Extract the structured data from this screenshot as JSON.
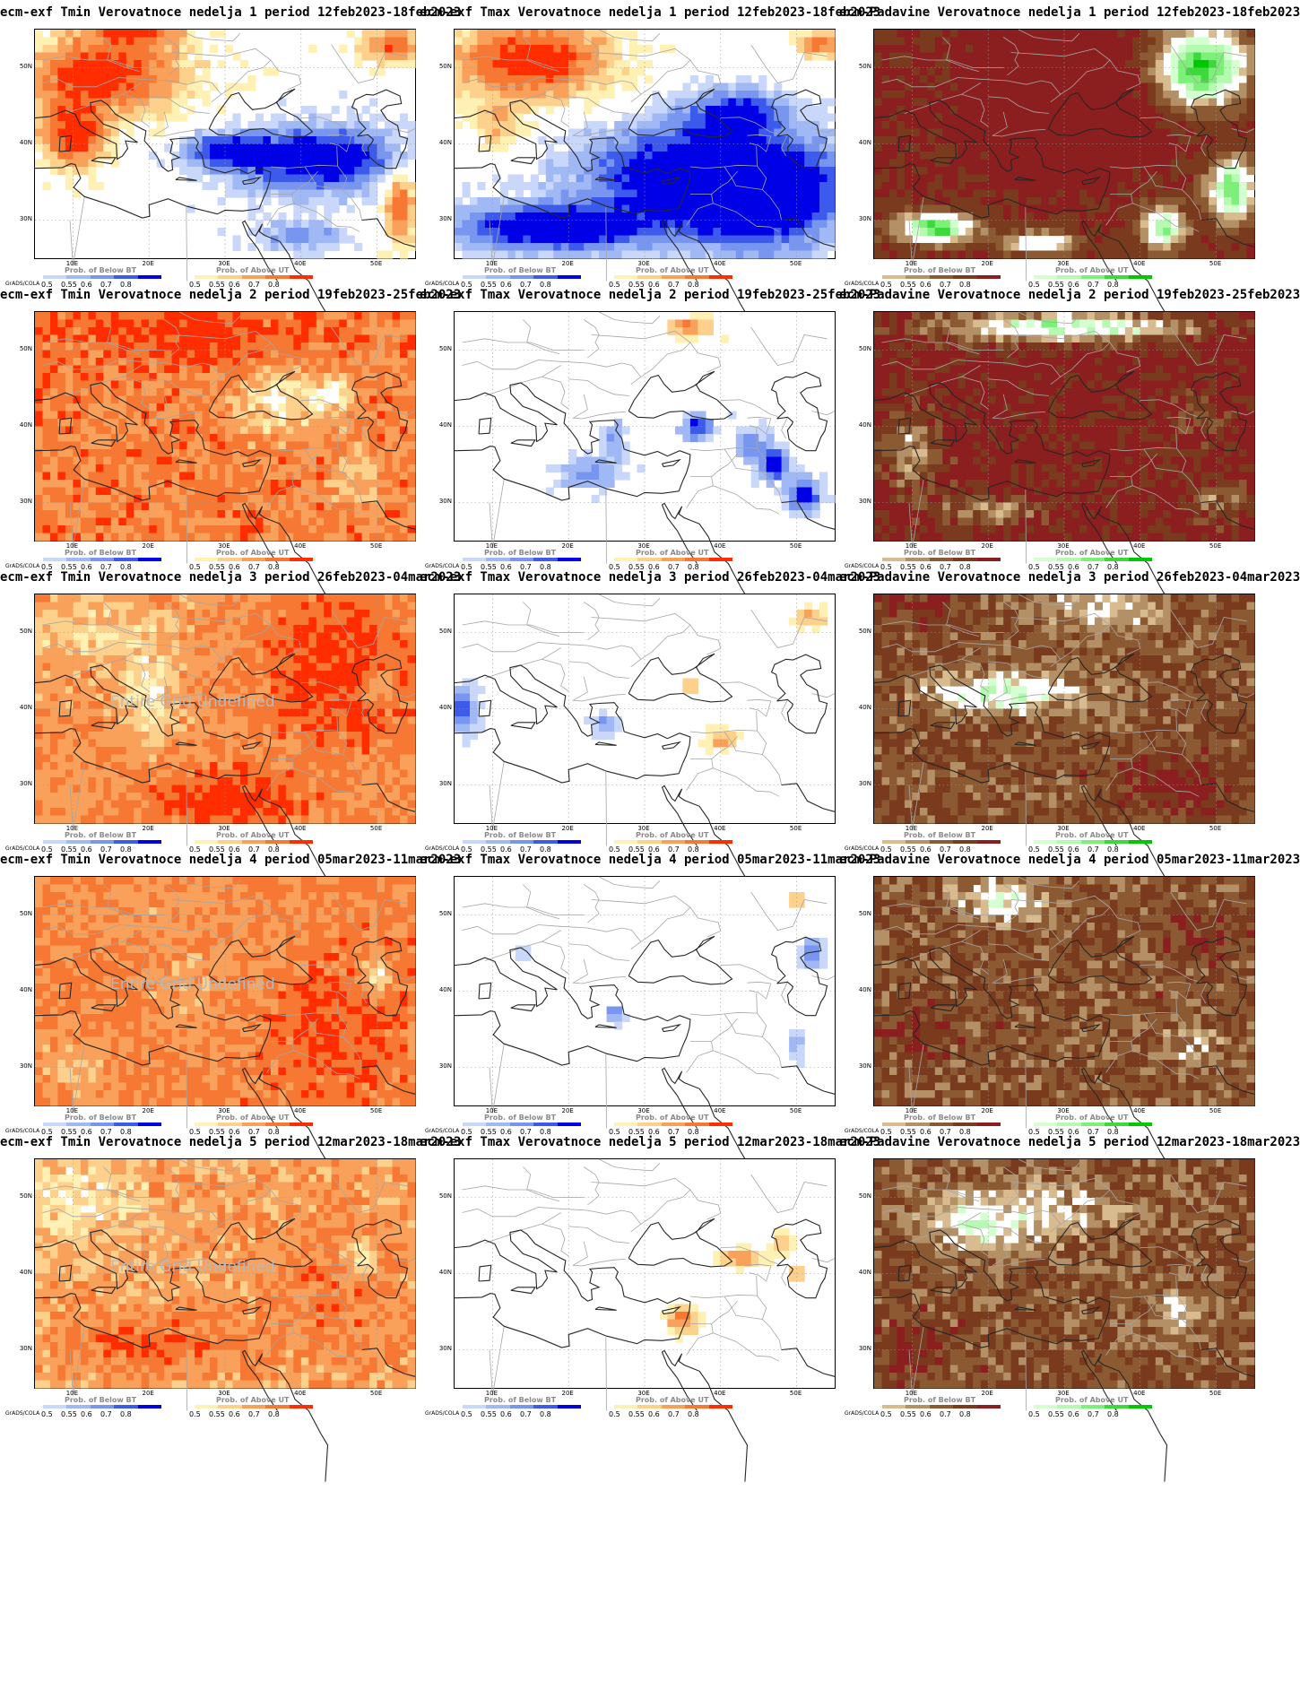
{
  "panels": [
    {
      "title": "ecm-exf Tmin Verovatnoce nedelja 1 period 12feb2023-18feb2023",
      "var": "tmin",
      "week": 1
    },
    {
      "title": "ecm-exf Tmax Verovatnoce nedelja 1 period 12feb2023-18feb2023",
      "var": "tmax",
      "week": 1
    },
    {
      "title": "ecm-Padavine Verovatnoce nedelja 1 period 12feb2023-18feb2023",
      "var": "prec",
      "week": 1
    },
    {
      "title": "ecm-exf Tmin Verovatnoce nedelja 2 period 19feb2023-25feb2023",
      "var": "tmin",
      "week": 2
    },
    {
      "title": "ecm-exf Tmax Verovatnoce nedelja 2 period 19feb2023-25feb2023",
      "var": "tmax",
      "week": 2
    },
    {
      "title": "ecm-Padavine Verovatnoce nedelja 2 period 19feb2023-25feb2023",
      "var": "prec",
      "week": 2
    },
    {
      "title": "ecm-exf Tmin Verovatnoce nedelja 3 period 26feb2023-04mar2023",
      "var": "tmin",
      "week": 3,
      "undefined_text": "Entire Grid Undefined"
    },
    {
      "title": "ecm-exf Tmax Verovatnoce nedelja 3 period 26feb2023-04mar2023",
      "var": "tmax",
      "week": 3
    },
    {
      "title": "ecm-Padavine Verovatnoce nedelja 3 period 26feb2023-04mar2023",
      "var": "prec",
      "week": 3
    },
    {
      "title": "ecm-exf Tmin Verovatnoce nedelja 4 period 05mar2023-11mar2023",
      "var": "tmin",
      "week": 4,
      "undefined_text": "Entire Grid Undefined"
    },
    {
      "title": "ecm-exf Tmax Verovatnoce nedelja 4 period 05mar2023-11mar2023",
      "var": "tmax",
      "week": 4
    },
    {
      "title": "ecm-Padavine Verovatnoce nedelja 4 period 05mar2023-11mar2023",
      "var": "prec",
      "week": 4
    },
    {
      "title": "ecm-exf Tmin Verovatnoce nedelja 5 period 12mar2023-18mar2023",
      "var": "tmin",
      "week": 5,
      "undefined_text": "Entire Grid Undefined"
    },
    {
      "title": "ecm-exf Tmax Verovatnoce nedelja 5 period 12mar2023-18mar2023",
      "var": "tmax",
      "week": 5
    },
    {
      "title": "ecm-Padavine Verovatnoce nedelja 5 period 12mar2023-18mar2023",
      "var": "prec",
      "week": 5
    }
  ],
  "axes": {
    "lat_ticks": [
      "50N",
      "40N",
      "30N"
    ],
    "lon_ticks": [
      "10E",
      "20E",
      "30E",
      "40E",
      "50E"
    ]
  },
  "grads_label": "GrADS/COLA",
  "colorbars": {
    "temp": [
      {
        "title": "Prob. of Below BT",
        "labels": [
          "0.5",
          "0.55",
          "0.6",
          "0.7",
          "0.8"
        ],
        "colors": [
          "#c8d7fa",
          "#a0b9f5",
          "#7896f0",
          "#3c5aeb",
          "#0000e6"
        ]
      },
      {
        "title": "Prob. of Above UT",
        "labels": [
          "0.5",
          "0.55",
          "0.6",
          "0.7",
          "0.8"
        ],
        "colors": [
          "#fff0b4",
          "#fdd08c",
          "#f9a05a",
          "#f67832",
          "#ff2d00"
        ]
      }
    ],
    "prec": [
      {
        "title": "Prob. of Below BT",
        "labels": [
          "0.5",
          "0.55",
          "0.6",
          "0.7",
          "0.8"
        ],
        "colors": [
          "#d8bc90",
          "#b39066",
          "#8c5a32",
          "#7a3a1e",
          "#8b1e1e"
        ]
      },
      {
        "title": "Prob. of Above UT",
        "labels": [
          "0.5",
          "0.55",
          "0.6",
          "0.7",
          "0.8"
        ],
        "colors": [
          "#d4ffd0",
          "#b4fab0",
          "#7cf078",
          "#3cd83c",
          "#00c800"
        ]
      }
    ]
  },
  "colors": {
    "temp_warm": [
      "#fff0b4",
      "#fdd08c",
      "#f9a05a",
      "#f67832",
      "#ff2d00"
    ],
    "temp_cold": [
      "#c8d7fa",
      "#a0b9f5",
      "#7896f0",
      "#3c5aeb",
      "#0000e6"
    ],
    "prec_dry": [
      "#d8bc90",
      "#b39066",
      "#8c5a32",
      "#7a3a1e",
      "#8b1e1e"
    ],
    "prec_wet": [
      "#d4ffd0",
      "#b4fab0",
      "#7cf078",
      "#3cd83c",
      "#00c800"
    ]
  }
}
